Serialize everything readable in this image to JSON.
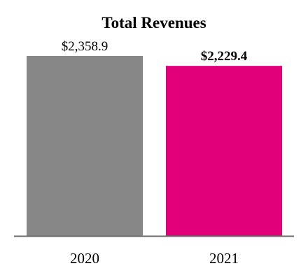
{
  "chart_data": {
    "type": "bar",
    "title": "Total Revenues",
    "categories": [
      "2020",
      "2021"
    ],
    "values": [
      2358.9,
      2229.4
    ],
    "value_labels": [
      "$2,358.9",
      "$2,229.4"
    ],
    "bold_value_label": [
      false,
      true
    ],
    "colors": [
      "#878787",
      "#e2007a"
    ],
    "axis_color": "#6b6b6b",
    "ylim": [
      0,
      2358.9
    ],
    "grid": false,
    "legend": "none",
    "xlabel": "",
    "ylabel": ""
  }
}
